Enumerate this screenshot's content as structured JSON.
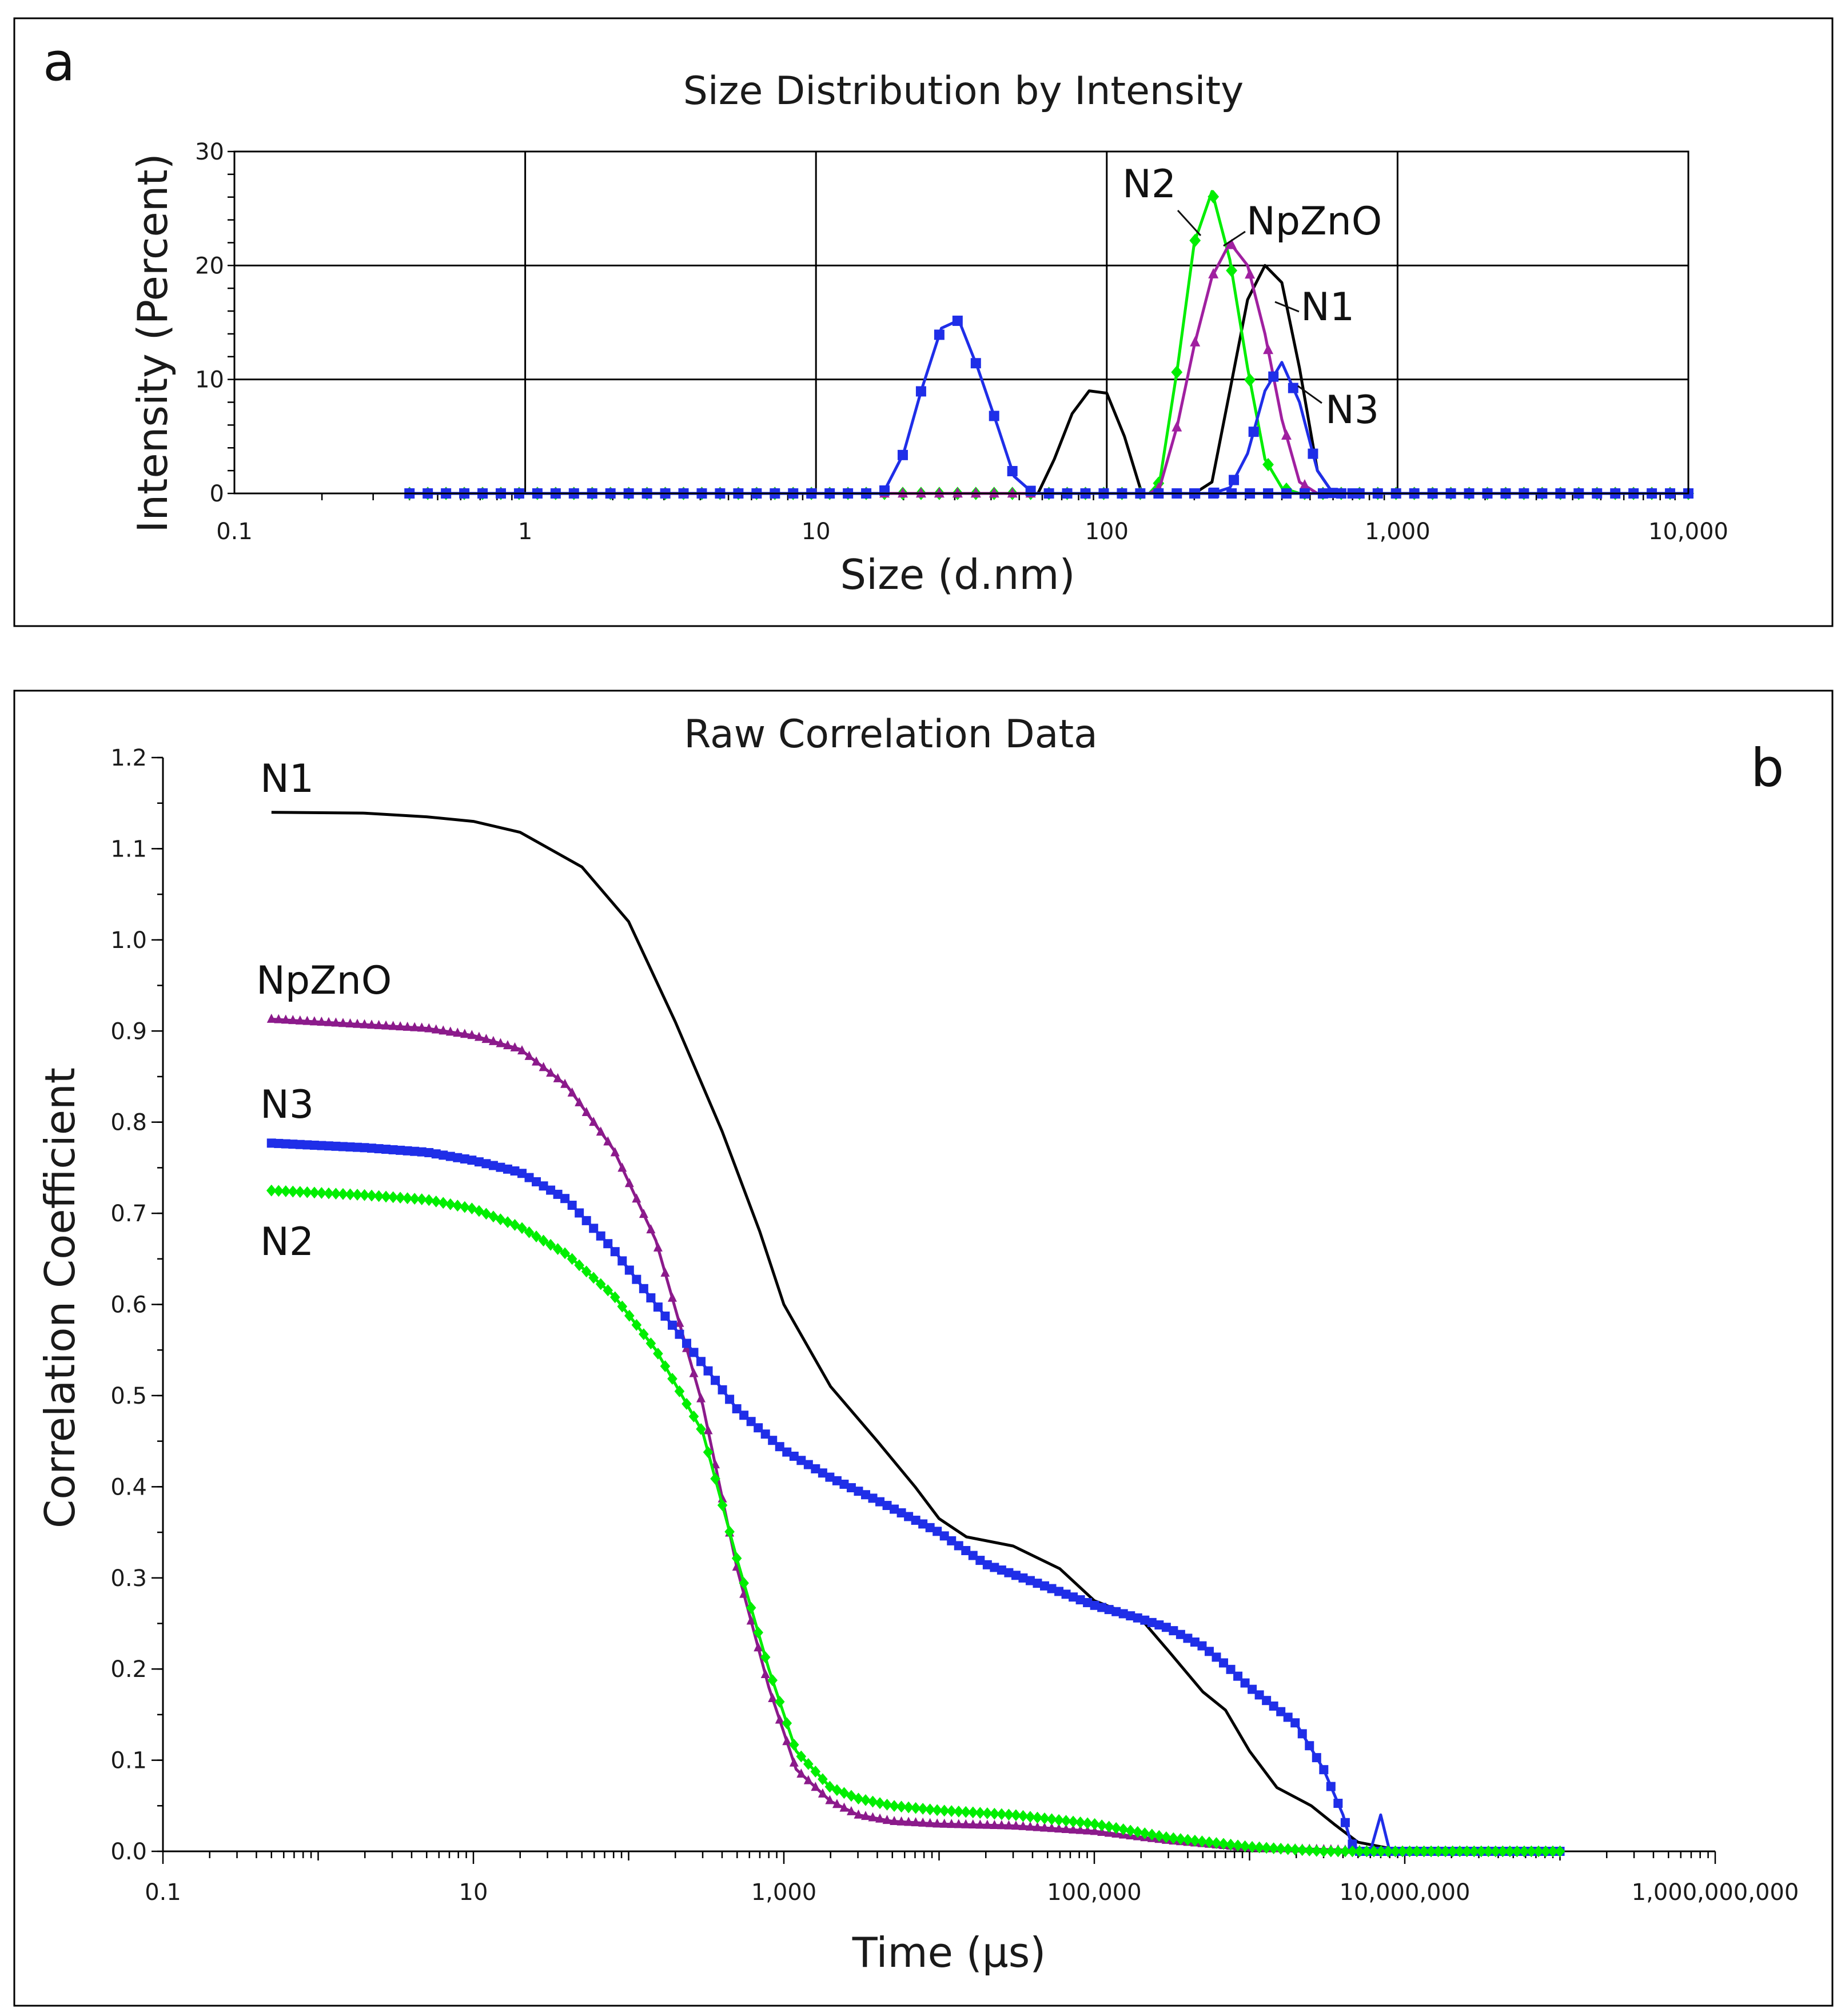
{
  "chart_data": [
    {
      "panel": "a",
      "type": "line",
      "title": "Size Distribution by Intensity",
      "xlabel": "Size (d.nm)",
      "ylabel": "Intensity (Percent)",
      "xscale": "log",
      "xlim": [
        0.1,
        10000
      ],
      "ylim": [
        0,
        30
      ],
      "xticks": [
        0.1,
        1,
        10,
        100,
        1000,
        10000
      ],
      "xtick_labels": [
        "0.1",
        "1",
        "10",
        "100",
        "1,000",
        "10,000"
      ],
      "yticks": [
        0,
        10,
        20,
        30
      ],
      "ytick_labels": [
        "0",
        "10",
        "20",
        "30"
      ],
      "grid": true,
      "series": [
        {
          "name": "N1",
          "color": "#000000",
          "marker": "none",
          "x": [
            0.4,
            50,
            58,
            66,
            76,
            87,
            100,
            115,
            132,
            152,
            175,
            200,
            230,
            265,
            305,
            350,
            400,
            460,
            530,
            600,
            10000
          ],
          "y": [
            0,
            0,
            0,
            3,
            7,
            9,
            8.8,
            5,
            0,
            0,
            0,
            0,
            1,
            9,
            17,
            20,
            18.5,
            11,
            2,
            0,
            0
          ]
        },
        {
          "name": "N2",
          "color": "#00ee00",
          "marker": "diamond",
          "x": [
            0.4,
            140,
            152,
            175,
            200,
            230,
            265,
            305,
            350,
            400,
            460,
            530,
            10000
          ],
          "y": [
            0,
            0,
            1,
            11,
            22,
            26.5,
            20.5,
            11,
            3,
            0.5,
            0,
            0,
            0
          ],
          "markers_x": [
            0.4,
            152,
            175,
            200,
            230,
            265,
            305,
            350,
            400,
            460,
            530,
            10000
          ]
        },
        {
          "name": "NpZnO",
          "color": "#a020a0",
          "marker": "triangle",
          "x": [
            0.4,
            140,
            152,
            175,
            200,
            230,
            265,
            305,
            350,
            400,
            460,
            530,
            600,
            10000
          ],
          "y": [
            0,
            0,
            0.5,
            6,
            13,
            19,
            22,
            20,
            14,
            6.5,
            1,
            0,
            0,
            0
          ]
        },
        {
          "name": "N3",
          "color": "#1f2ee8",
          "marker": "square",
          "x": [
            0.4,
            17,
            20,
            23,
            27,
            31,
            36,
            42,
            48,
            56,
            65,
            10000
          ],
          "y": [
            0,
            0,
            3.5,
            9,
            14.5,
            15.2,
            11,
            6,
            1.5,
            0,
            0,
            0
          ],
          "x2": [
            200,
            230,
            265,
            305,
            350,
            400,
            460,
            530,
            600,
            700
          ],
          "y2": [
            0,
            0,
            0.5,
            3.5,
            9,
            11.5,
            8,
            2,
            0,
            0
          ]
        }
      ],
      "annotations": [
        "N2",
        "NpZnO",
        "N1",
        "N3"
      ]
    },
    {
      "panel": "b",
      "type": "line",
      "title": "Raw Correlation Data",
      "xlabel": "Time (µs)",
      "ylabel": "Correlation Coefficient",
      "xscale": "log",
      "xlim": [
        0.1,
        1000000000
      ],
      "ylim": [
        0,
        1.2
      ],
      "xticks": [
        0.1,
        10,
        1000,
        100000,
        10000000,
        1000000000
      ],
      "xtick_labels": [
        "0.1",
        "10",
        "1,000",
        "100,000",
        "10,000,000",
        "1,000,000,000"
      ],
      "yticks": [
        0.0,
        0.1,
        0.2,
        0.3,
        0.4,
        0.5,
        0.6,
        0.7,
        0.8,
        0.9,
        1.0,
        1.1,
        1.2
      ],
      "ytick_labels": [
        "0.0",
        "0.1",
        "0.2",
        "0.3",
        "0.4",
        "0.5",
        "0.6",
        "0.7",
        "0.8",
        "0.9",
        "1.0",
        "1.1",
        "1.2"
      ],
      "grid": false,
      "series": [
        {
          "name": "N1",
          "color": "#000000",
          "marker": "none",
          "x": [
            0.5,
            2,
            5,
            10,
            20,
            50,
            100,
            200,
            400,
            700,
            1000,
            2000,
            4000,
            7000,
            10000,
            15000,
            30000,
            60000,
            100000,
            200000,
            300000,
            500000,
            700000,
            1000000,
            1500000,
            2500000,
            3500000,
            5000000,
            10000000,
            100000000
          ],
          "y": [
            1.14,
            1.139,
            1.135,
            1.13,
            1.118,
            1.08,
            1.02,
            0.91,
            0.79,
            0.68,
            0.6,
            0.51,
            0.45,
            0.4,
            0.365,
            0.345,
            0.335,
            0.31,
            0.275,
            0.255,
            0.22,
            0.175,
            0.155,
            0.11,
            0.07,
            0.05,
            0.03,
            0.01,
            0.0,
            0.0
          ]
        },
        {
          "name": "NpZnO",
          "color": "#8b1a8b",
          "marker": "triangle",
          "x": [
            0.5,
            2,
            5,
            10,
            20,
            40,
            80,
            150,
            300,
            500,
            800,
            1200,
            2000,
            3000,
            5000,
            10000,
            30000,
            100000,
            300000,
            1000000,
            10000000,
            100000000
          ],
          "y": [
            0.913,
            0.907,
            0.903,
            0.895,
            0.88,
            0.84,
            0.77,
            0.67,
            0.49,
            0.31,
            0.18,
            0.09,
            0.055,
            0.04,
            0.033,
            0.03,
            0.028,
            0.022,
            0.012,
            0.004,
            0.0,
            0.0
          ]
        },
        {
          "name": "N3",
          "color": "#1f2ee8",
          "marker": "square",
          "x": [
            0.5,
            2,
            5,
            10,
            20,
            40,
            80,
            150,
            300,
            500,
            1000,
            2000,
            4000,
            10000,
            20000,
            50000,
            100000,
            200000,
            300000,
            500000,
            700000,
            1000000,
            2000000,
            3000000,
            4000000,
            4500000,
            5000000,
            100000000
          ],
          "y": [
            0.777,
            0.772,
            0.767,
            0.758,
            0.745,
            0.715,
            0.66,
            0.6,
            0.535,
            0.485,
            0.44,
            0.41,
            0.385,
            0.35,
            0.315,
            0.29,
            0.27,
            0.255,
            0.245,
            0.225,
            0.205,
            0.18,
            0.14,
            0.09,
            0.04,
            0.01,
            0.0,
            0.0
          ],
          "spike_x": [
            6000000,
            7000000,
            8000000
          ],
          "spike_y": [
            0.0,
            0.04,
            0.0
          ]
        },
        {
          "name": "N2",
          "color": "#00ee00",
          "marker": "diamond",
          "x": [
            0.5,
            2,
            5,
            10,
            20,
            40,
            80,
            150,
            300,
            500,
            800,
            1200,
            2000,
            3000,
            5000,
            10000,
            30000,
            100000,
            300000,
            1000000,
            3000000,
            10000000,
            100000000
          ],
          "y": [
            0.725,
            0.72,
            0.715,
            0.705,
            0.685,
            0.655,
            0.61,
            0.55,
            0.46,
            0.32,
            0.2,
            0.11,
            0.07,
            0.058,
            0.05,
            0.045,
            0.04,
            0.03,
            0.015,
            0.005,
            0.0,
            0.0,
            0.0
          ]
        }
      ],
      "annotations": [
        "N1",
        "NpZnO",
        "N3",
        "N2"
      ]
    }
  ],
  "panels": {
    "a": {
      "label": "a"
    },
    "b": {
      "label": "b"
    }
  }
}
